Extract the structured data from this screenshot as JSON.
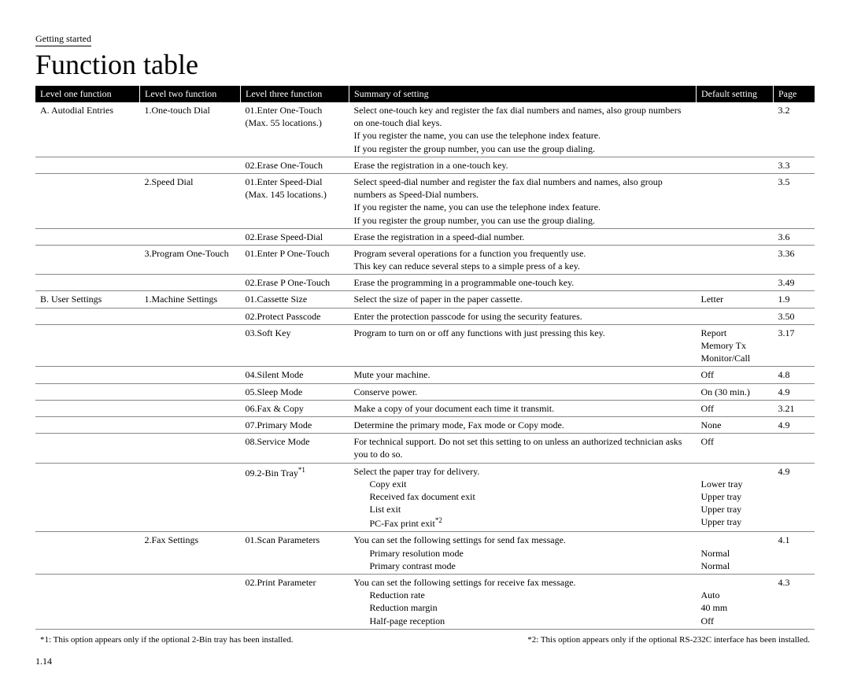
{
  "breadcrumb": "Getting started",
  "title": "Function table",
  "headers": {
    "c1": "Level one function",
    "c2": "Level two function",
    "c3": "Level three function",
    "c4": "Summary of setting",
    "c5": "Default setting",
    "c6": "Page"
  },
  "rows": [
    {
      "c1": "A. Autodial Entries",
      "c2": "1.One-touch Dial",
      "c3": "01.Enter One-Touch",
      "c3b": "(Max. 55 locations.)",
      "c4": "Select one-touch key and register the fax dial numbers and names, also group numbers on one-touch dial keys.\nIf you register the name, you can use the telephone index feature.\nIf you register the group number, you can use the group dialing.",
      "c5": "",
      "c6": "3.2"
    },
    {
      "c1": "",
      "c2": "",
      "c3": "02.Erase One-Touch",
      "c4": "Erase the registration in a one-touch key.",
      "c5": "",
      "c6": "3.3"
    },
    {
      "c1": "",
      "c2": "2.Speed Dial",
      "c3": "01.Enter Speed-Dial",
      "c3b": "(Max. 145 locations.)",
      "c4": "Select speed-dial number and register the fax dial numbers and names, also group numbers as Speed-Dial numbers.\nIf you register the name, you can use the telephone index feature.\nIf you register the group number, you can use the group dialing.",
      "c5": "",
      "c6": "3.5"
    },
    {
      "c1": "",
      "c2": "",
      "c3": "02.Erase Speed-Dial",
      "c4": "Erase the registration in a speed-dial number.",
      "c5": "",
      "c6": "3.6"
    },
    {
      "c1": "",
      "c2": "3.Program One-Touch",
      "c3": "01.Enter P One-Touch",
      "c4": "Program several operations for a function you frequently use.\nThis key can reduce several steps to a simple press of a key.",
      "c5": "",
      "c6": "3.36"
    },
    {
      "c1": "",
      "c2": "",
      "c3": "02.Erase P One-Touch",
      "c4": "Erase the programming in a programmable one-touch key.",
      "c5": "",
      "c6": "3.49"
    },
    {
      "c1": "B. User Settings",
      "c2": "1.Machine Settings",
      "c3": "01.Cassette Size",
      "c4": "Select the size of paper in the paper cassette.",
      "c5": "Letter",
      "c6": "1.9"
    },
    {
      "c1": "",
      "c2": "",
      "c3": "02.Protect Passcode",
      "c4": "Enter the protection passcode for using the security features.",
      "c5": "",
      "c6": "3.50"
    },
    {
      "c1": "",
      "c2": "",
      "c3": "03.Soft Key",
      "c4": "Program to turn on or off any functions with just pressing this key.",
      "c5": "Report\nMemory Tx\nMonitor/Call",
      "c6": "3.17"
    },
    {
      "c1": "",
      "c2": "",
      "c3": "04.Silent Mode",
      "c4": "Mute your machine.",
      "c5": "Off",
      "c6": "4.8"
    },
    {
      "c1": "",
      "c2": "",
      "c3": "05.Sleep Mode",
      "c4": "Conserve power.",
      "c5": "On (30 min.)",
      "c6": "4.9"
    },
    {
      "c1": "",
      "c2": "",
      "c3": "06.Fax & Copy",
      "c4": "Make a copy of your document each time it transmit.",
      "c5": "Off",
      "c6": "3.21"
    },
    {
      "c1": "",
      "c2": "",
      "c3": "07.Primary Mode",
      "c4": "Determine the primary mode, Fax mode or Copy mode.",
      "c5": "None",
      "c6": "4.9"
    },
    {
      "c1": "",
      "c2": "",
      "c3": "08.Service Mode",
      "c4": "For technical support.  Do not set this setting to on unless an authorized technician asks you to do so.",
      "c5": "Off",
      "c6": ""
    },
    {
      "c1": "",
      "c2": "",
      "c3": "09.2-Bin Tray",
      "c3sup": "*1",
      "c4": "Select the paper tray for delivery.",
      "c4b": [
        "Copy exit",
        "Received fax document exit",
        "List exit",
        "PC-Fax print exit"
      ],
      "c4bsup": "*2",
      "c5": "\nLower tray\nUpper tray\nUpper tray\nUpper tray",
      "c6": "4.9"
    },
    {
      "c1": "",
      "c2": "2.Fax Settings",
      "c3": "01.Scan Parameters",
      "c4": "You can set the following settings for send fax message.",
      "c4b": [
        "Primary resolution mode",
        "Primary contrast mode"
      ],
      "c5": "\nNormal\nNormal",
      "c6": "4.1"
    },
    {
      "c1": "",
      "c2": "",
      "c3": "02.Print Parameter",
      "c4": "You can set the following settings for receive fax message.",
      "c4b": [
        "Reduction rate",
        "Reduction margin",
        "Half-page reception"
      ],
      "c5": "\nAuto\n40 mm\nOff",
      "c6": "4.3"
    }
  ],
  "footnote1": "*1: This option appears only if the optional 2-Bin tray has been installed.",
  "footnote2": "*2:  This option appears only if the optional RS-232C interface has been installed.",
  "pagenum": "1.14"
}
